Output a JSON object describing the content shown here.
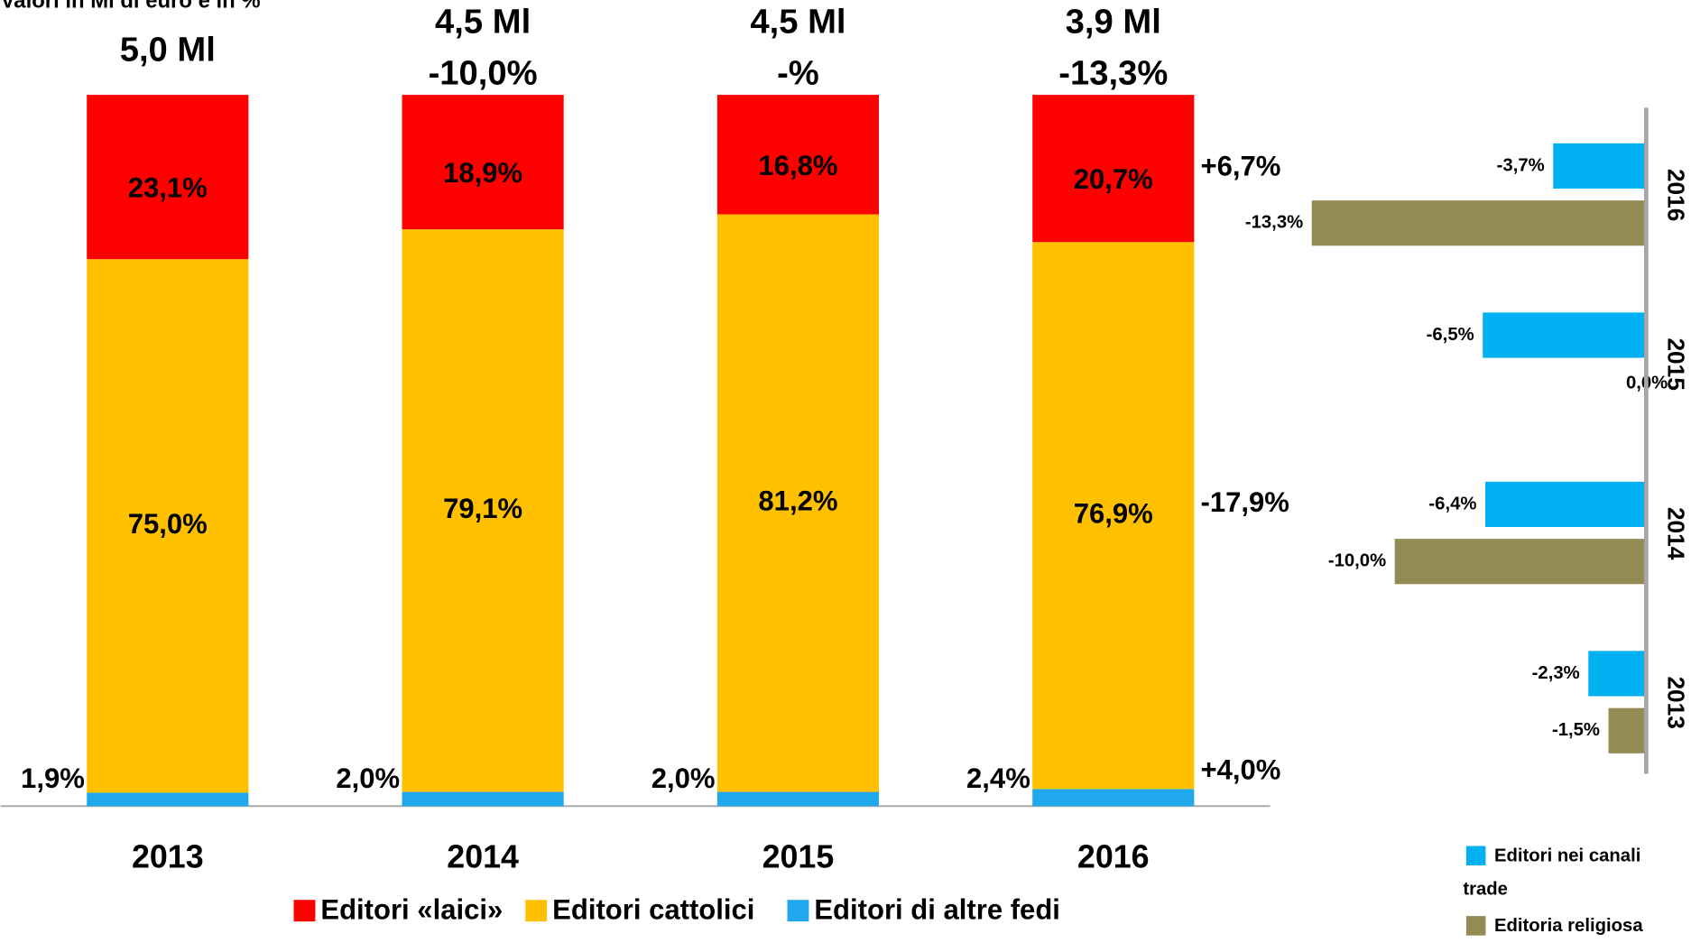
{
  "chart_data": [
    {
      "type": "stacked_bar",
      "subtitle": "Valori in Ml di euro e in %",
      "categories": [
        "2013",
        "2014",
        "2015",
        "2016"
      ],
      "ylim": [
        0,
        100
      ],
      "total_labels": [
        "5,0 Ml",
        "4,5 Ml",
        "4,5 Ml",
        "3,9 Ml"
      ],
      "change_labels": [
        null,
        "-10,0%",
        "-%",
        "-13,3%"
      ],
      "series": [
        {
          "name": "Editori «laici»",
          "color": "#ff0000",
          "values": [
            23.1,
            18.9,
            16.8,
            20.7
          ],
          "value_labels": [
            "23,1%",
            "18,9%",
            "16,8%",
            "20,7%"
          ],
          "change_label": "+6,7%"
        },
        {
          "name": "Editori cattolici",
          "color": "#ffc000",
          "values": [
            75.0,
            79.1,
            81.2,
            76.9
          ],
          "value_labels": [
            "75,0%",
            "79,1%",
            "81,2%",
            "76,9%"
          ],
          "change_label": "-17,9%"
        },
        {
          "name": "Editori di altre fedi",
          "color": "#1fa8ec",
          "values": [
            1.9,
            2.0,
            2.0,
            2.4
          ],
          "value_labels": [
            "1,9%",
            "2,0%",
            "2,0%",
            "2,4%"
          ],
          "change_label": "+4,0%"
        }
      ]
    },
    {
      "type": "hbar",
      "categories": [
        "2016",
        "2015",
        "2014",
        "2013"
      ],
      "xlim": [
        -15,
        0
      ],
      "series": [
        {
          "name": "Editori nei canali trade",
          "color": "#00b0f0",
          "values": [
            -3.7,
            -6.5,
            -6.4,
            -2.3
          ],
          "value_labels": [
            "-3,7%",
            "-6,5%",
            "-6,4%",
            "-2,3%"
          ]
        },
        {
          "name": "Editoria religiosa",
          "color": "#948a54",
          "values": [
            -13.3,
            0.0,
            -10.0,
            -1.5
          ],
          "value_labels": [
            "-13,3%",
            "0,0%",
            "-10,0%",
            "-1,5%"
          ]
        }
      ]
    }
  ]
}
